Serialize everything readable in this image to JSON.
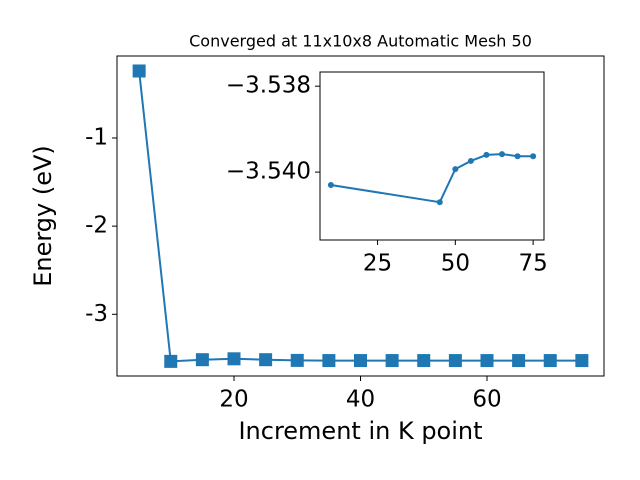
{
  "chart_data": [
    {
      "type": "line",
      "title": "Converged at 11x10x8 Automatic Mesh 50",
      "x_label": "Increment in K point",
      "y_label": "Energy (eV)",
      "x": [
        5,
        10,
        15,
        20,
        25,
        30,
        35,
        40,
        45,
        50,
        55,
        60,
        65,
        70,
        75
      ],
      "series": [
        {
          "color": "#1f77b4",
          "marker": "square",
          "values": [
            -0.24,
            -3.534,
            -3.515,
            -3.505,
            -3.515,
            -3.523,
            -3.525,
            -3.525,
            -3.525,
            -3.525,
            -3.525,
            -3.525,
            -3.525,
            -3.525,
            -3.525
          ]
        }
      ],
      "xlim": [
        1.5,
        78.5
      ],
      "xticks": [
        20,
        40,
        60
      ],
      "ylim": [
        -3.7,
        -0.07
      ],
      "yticks": [
        -3,
        -2,
        -1
      ]
    },
    {
      "type": "line",
      "x": [
        10,
        45,
        50,
        55,
        60,
        65,
        70,
        75
      ],
      "series": [
        {
          "color": "#1f77b4",
          "marker": "circle",
          "values": [
            -3.5403,
            -3.5407,
            -3.53993,
            -3.53974,
            -3.5396,
            -3.53958,
            -3.53963,
            -3.53963
          ]
        }
      ],
      "xlim": [
        6.5,
        78.5
      ],
      "xticks": [
        25,
        50,
        75
      ],
      "ylim": [
        -3.54158,
        -3.53767
      ],
      "yticks": [
        {
          "value": -3.54,
          "label": "−3.540"
        },
        {
          "value": -3.538,
          "label": "−3.538"
        }
      ]
    }
  ]
}
